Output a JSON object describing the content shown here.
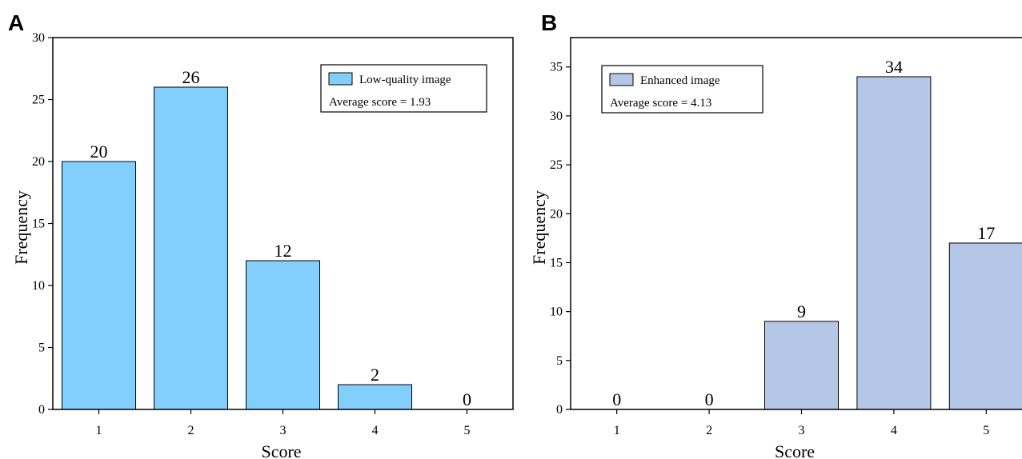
{
  "chart_data": [
    {
      "panel": "A",
      "type": "bar",
      "categories": [
        "1",
        "2",
        "3",
        "4",
        "5"
      ],
      "values": [
        20,
        26,
        12,
        2,
        0
      ],
      "xlabel": "Score",
      "ylabel": "Frequency",
      "ylim": [
        0,
        30
      ],
      "yticks": [
        0,
        5,
        10,
        15,
        20,
        25,
        30
      ],
      "bar_color": "#82cffd",
      "legend": {
        "placement": "top-right",
        "label": "Low-quality image",
        "note": "Average score = 1.93"
      }
    },
    {
      "panel": "B",
      "type": "bar",
      "categories": [
        "1",
        "2",
        "3",
        "4",
        "5"
      ],
      "values": [
        0,
        0,
        9,
        34,
        17
      ],
      "xlabel": "Score",
      "ylabel": "Frequency",
      "ylim": [
        0,
        38
      ],
      "yticks": [
        0,
        5,
        10,
        15,
        20,
        25,
        30,
        35
      ],
      "bar_color": "#b4c7e7",
      "legend": {
        "placement": "top-left",
        "label": "Enhanced image",
        "note": "Average score = 4.13"
      }
    }
  ]
}
